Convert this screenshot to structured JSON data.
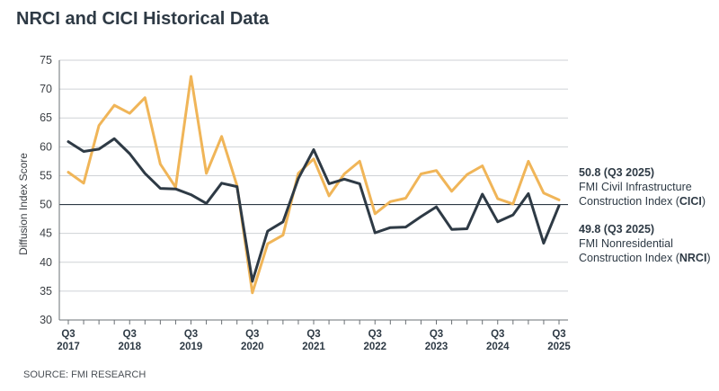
{
  "chart_data": {
    "type": "line",
    "title": "NRCI and CICI Historical Data",
    "source": "SOURCE: FMI RESEARCH",
    "ylabel": "Diffusion Index Score",
    "xlabel": "",
    "ylim": [
      30,
      75
    ],
    "yticks": [
      30,
      35,
      40,
      45,
      50,
      55,
      60,
      65,
      70,
      75
    ],
    "grid": true,
    "reference_line": 50,
    "x_start": "Q3 2017",
    "x_end": "Q3 2025",
    "xticks": [
      {
        "q": "Q3",
        "year": "2017"
      },
      {
        "q": "Q3",
        "year": "2018"
      },
      {
        "q": "Q3",
        "year": "2019"
      },
      {
        "q": "Q3",
        "year": "2020"
      },
      {
        "q": "Q3",
        "year": "2021"
      },
      {
        "q": "Q3",
        "year": "2022"
      },
      {
        "q": "Q3",
        "year": "2023"
      },
      {
        "q": "Q3",
        "year": "2024"
      },
      {
        "q": "Q3",
        "year": "2025"
      }
    ],
    "categories": [
      "Q3 2017",
      "Q4 2017",
      "Q1 2018",
      "Q2 2018",
      "Q3 2018",
      "Q4 2018",
      "Q1 2019",
      "Q2 2019",
      "Q3 2019",
      "Q4 2019",
      "Q1 2020",
      "Q2 2020",
      "Q3 2020",
      "Q4 2020",
      "Q1 2021",
      "Q2 2021",
      "Q3 2021",
      "Q4 2021",
      "Q1 2022",
      "Q2 2022",
      "Q3 2022",
      "Q4 2022",
      "Q1 2023",
      "Q2 2023",
      "Q3 2023",
      "Q4 2023",
      "Q1 2024",
      "Q2 2024",
      "Q3 2024",
      "Q4 2024",
      "Q1 2025",
      "Q2 2025",
      "Q3 2025"
    ],
    "series": [
      {
        "key": "cici",
        "color": "#f0b558",
        "values": [
          55.6,
          53.7,
          63.7,
          67.2,
          65.8,
          68.5,
          57.0,
          53.0,
          72.2,
          55.4,
          61.8,
          53.3,
          34.7,
          43.2,
          44.7,
          55.4,
          57.9,
          51.5,
          55.3,
          57.5,
          48.4,
          50.5,
          51.1,
          55.3,
          55.9,
          52.3,
          55.2,
          56.7,
          51.0,
          50.1,
          57.5,
          52.0,
          50.8
        ]
      },
      {
        "key": "nrci",
        "color": "#2e3a45",
        "values": [
          60.9,
          59.2,
          59.6,
          61.4,
          58.8,
          55.4,
          52.8,
          52.7,
          51.7,
          50.2,
          53.7,
          53.1,
          36.7,
          45.4,
          47.0,
          54.5,
          59.5,
          53.6,
          54.4,
          53.6,
          45.1,
          46.0,
          46.1,
          47.9,
          49.6,
          45.7,
          45.8,
          51.8,
          47.0,
          48.2,
          51.9,
          43.3,
          49.8
        ]
      }
    ],
    "annotations": [
      {
        "value": "50.8 (Q3 2025)",
        "line1": "FMI Civil Infrastructure",
        "line2_pre": "Construction Index (",
        "line2_bold": "CICI",
        "line2_post": ")"
      },
      {
        "value": "49.8 (Q3 2025)",
        "line1": "FMI Nonresidential",
        "line2_pre": "Construction Index (",
        "line2_bold": "NRCI",
        "line2_post": ")"
      }
    ]
  }
}
